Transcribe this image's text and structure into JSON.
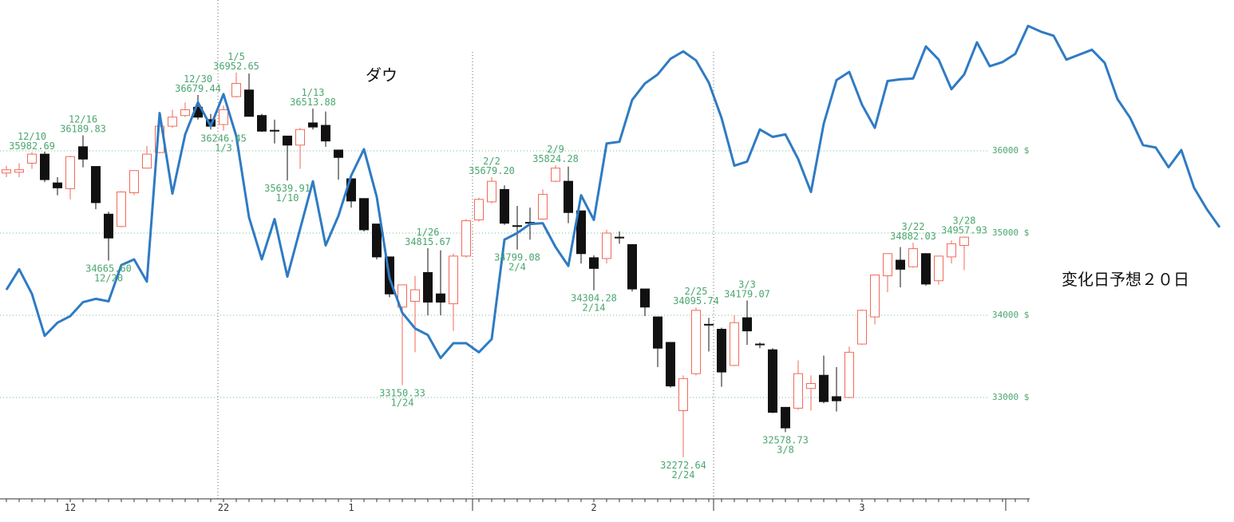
{
  "chart_data": {
    "type": "candlestick",
    "categories": [
      null,
      null,
      null,
      null,
      null,
      "12",
      null,
      null,
      null,
      null,
      null,
      null,
      null,
      null,
      null,
      null,
      null,
      "22",
      null,
      null,
      null,
      null,
      null,
      null,
      null,
      null,
      null,
      "1",
      null,
      null,
      null,
      null,
      null,
      null,
      null,
      null,
      null,
      null,
      null,
      null,
      null,
      null,
      null,
      null,
      null,
      null,
      "2",
      null,
      null,
      null,
      null,
      null,
      null,
      null,
      null,
      null,
      null,
      null,
      null,
      null,
      null,
      null,
      null,
      null,
      null,
      null,
      null,
      "3",
      null,
      null,
      null,
      null,
      null,
      null,
      null,
      null,
      null,
      null,
      null,
      null,
      null,
      null,
      null,
      null,
      null,
      null,
      null,
      null,
      null,
      null,
      null,
      null,
      null,
      null,
      null,
      null
    ],
    "open": [
      35730,
      35740,
      35850,
      35960,
      35610,
      35540,
      36050,
      35810,
      35230,
      35080,
      35490,
      35790,
      35980,
      36300,
      36430,
      36530,
      36380,
      36320,
      36660,
      36740,
      36430,
      36250,
      36180,
      36070,
      36340,
      36310,
      36010,
      35660,
      35420,
      35110,
      34710,
      34100,
      34170,
      34520,
      34260,
      34140,
      34720,
      35160,
      35380,
      35530,
      35090,
      35130,
      35170,
      35630,
      35630,
      35270,
      34700,
      34690,
      34950,
      34860,
      34320,
      33980,
      33670,
      32840,
      33290,
      33890,
      33830,
      33390,
      33970,
      33650,
      33580,
      32880,
      32870,
      33110,
      33270,
      33010,
      33000,
      33650,
      33980,
      34480,
      34670,
      34590,
      34750,
      34420,
      34710,
      34850,
      null,
      null,
      null,
      null,
      null,
      null,
      null,
      null,
      null,
      null,
      null,
      null,
      null,
      null,
      null,
      null,
      null,
      null,
      null,
      null
    ],
    "high": [
      35820,
      35850,
      35982.69,
      35990,
      35680,
      35940,
      36189.83,
      35810,
      35260,
      35510,
      35760,
      36060,
      36330,
      36500,
      36590,
      36679.44,
      36450,
      36550,
      36952.65,
      36940,
      36450,
      36380,
      36180,
      36280,
      36513.88,
      36480,
      36010,
      35700,
      35420,
      35110,
      34710,
      34370,
      34480,
      34815.67,
      34790,
      34750,
      35170,
      35430,
      35679.2,
      35580,
      35330,
      35310,
      35530,
      35824.28,
      35810,
      35270,
      34730,
      35040,
      35020,
      34860,
      34320,
      33980,
      33670,
      33270,
      34095.74,
      33970,
      33850,
      34000,
      34179.07,
      33670,
      33600,
      32880,
      33450,
      33270,
      33510,
      33370,
      33620,
      34070,
      34490,
      34750,
      34830,
      34882.03,
      34750,
      34720,
      34910,
      34957.93,
      null,
      null,
      null,
      null,
      null,
      null,
      null,
      null,
      null,
      null,
      null,
      null,
      null,
      null,
      null,
      null,
      null,
      null,
      null,
      null
    ],
    "low": [
      35680,
      35680,
      35780,
      35620,
      35460,
      35410,
      35800,
      35290,
      34665.6,
      35070,
      35460,
      35790,
      35970,
      36280,
      36410,
      36380,
      36260,
      36246.45,
      36650,
      36420,
      36230,
      36090,
      35639.91,
      35780,
      36260,
      36050,
      35650,
      35310,
      35020,
      34680,
      34220,
      33150.33,
      33550,
      34000,
      34000,
      33810,
      34700,
      35140,
      35360,
      35100,
      34799.08,
      34920,
      35160,
      35620,
      35120,
      34630,
      34304.28,
      34630,
      34870,
      34290,
      33990,
      33370,
      33120,
      32272.64,
      33270,
      33560,
      33130,
      33380,
      33640,
      33600,
      32810,
      32578.73,
      32850,
      32840,
      32930,
      32830,
      32990,
      33640,
      33890,
      34280,
      34340,
      34580,
      34360,
      34370,
      34630,
      34550,
      null,
      null,
      null,
      null,
      null,
      null,
      null,
      null,
      null,
      null,
      null,
      null,
      null,
      null,
      null,
      null,
      null,
      null,
      null,
      null
    ],
    "close": [
      35770,
      35770,
      35960,
      35650,
      35550,
      35930,
      35900,
      35370,
      34940,
      35500,
      35760,
      35960,
      36300,
      36410,
      36500,
      36410,
      36300,
      36500,
      36820,
      36420,
      36240,
      36250,
      36070,
      36260,
      36290,
      36120,
      35920,
      35390,
      35040,
      34710,
      34260,
      34370,
      34310,
      34160,
      34160,
      34720,
      35150,
      35410,
      35630,
      35120,
      35090,
      35130,
      35470,
      35790,
      35250,
      34750,
      34570,
      35000,
      34950,
      34320,
      34100,
      33600,
      33140,
      33230,
      34060,
      33890,
      33310,
      33910,
      33810,
      33650,
      32820,
      32630,
      33290,
      33170,
      32950,
      32960,
      33550,
      34060,
      34490,
      34750,
      34560,
      34810,
      34380,
      34720,
      34870,
      34950,
      null,
      null,
      null,
      null,
      null,
      null,
      null,
      null,
      null,
      null,
      null,
      null,
      null,
      null,
      null,
      null,
      null,
      null,
      null,
      null
    ],
    "up_color": "#f26a5a",
    "down_color": "#111111",
    "series": [
      {
        "name": "ダウ",
        "color": "#2f7bc4",
        "values": [
          34310,
          34560,
          34260,
          33750,
          33910,
          33990,
          34160,
          34200,
          34170,
          34610,
          34680,
          34410,
          36460,
          35480,
          36200,
          36590,
          36300,
          36690,
          36180,
          35190,
          34680,
          35170,
          34470,
          35050,
          35630,
          34850,
          35210,
          35700,
          36020,
          35440,
          34450,
          34030,
          33840,
          33760,
          33480,
          33660,
          33660,
          33550,
          33710,
          34920,
          35000,
          35110,
          35120,
          34830,
          34600,
          35460,
          35160,
          36090,
          36110,
          36620,
          36820,
          36930,
          37120,
          37210,
          37100,
          36830,
          36400,
          35820,
          35870,
          36260,
          36170,
          36200,
          35900,
          35500,
          36330,
          36860,
          36960,
          36560,
          36280,
          36850,
          36870,
          36880,
          37270,
          37110,
          36750,
          36930,
          37320,
          37030,
          37080,
          37180,
          37520,
          37450,
          37400,
          37110,
          37170,
          37230,
          37070,
          36630,
          36400,
          36070,
          36040,
          35800,
          36010,
          35550,
          35290,
          35070
        ]
      }
    ],
    "annotations": [
      {
        "date": "12/10",
        "value": 35982.69
      },
      {
        "date": "12/16",
        "value": 36189.83
      },
      {
        "date": "12/20",
        "value": 34665.6,
        "label": "34665.60"
      },
      {
        "date": "12/30",
        "value": 36679.44
      },
      {
        "date": "1/3",
        "value": 36246.45
      },
      {
        "date": "1/5",
        "value": 36952.65
      },
      {
        "date": "1/10",
        "value": 35639.91
      },
      {
        "date": "1/13",
        "value": 36513.88
      },
      {
        "date": "1/24",
        "value": 33150.33
      },
      {
        "date": "1/26",
        "value": 34815.67
      },
      {
        "date": "2/2",
        "value": 35679.2,
        "label": "35679.20"
      },
      {
        "date": "2/4",
        "value": 34799.08
      },
      {
        "date": "2/9",
        "value": 35824.28
      },
      {
        "date": "2/14",
        "value": 34304.28
      },
      {
        "date": "2/24",
        "value": 32272.64
      },
      {
        "date": "2/25",
        "value": 34095.74
      },
      {
        "date": "3/3",
        "value": 34179.07
      },
      {
        "date": "3/8",
        "value": 32578.73
      },
      {
        "date": "3/22",
        "value": 34882.03
      },
      {
        "date": "3/28",
        "value": 34957.93
      }
    ],
    "note": "変化日予想２０日",
    "ylim": [
      31767,
      37835
    ],
    "yticks": [
      {
        "value": 33000,
        "label": "33000 $"
      },
      {
        "value": 34000,
        "label": "34000 $"
      },
      {
        "value": 35000,
        "label": "35000 $"
      },
      {
        "value": 36000,
        "label": "36000 $"
      }
    ],
    "grid": true
  }
}
